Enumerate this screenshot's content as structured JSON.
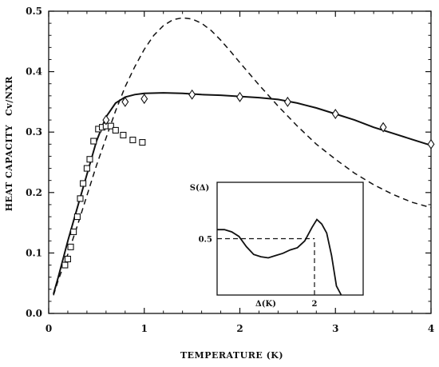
{
  "chart_data": [
    {
      "type": "line",
      "title": "",
      "xlabel": "TEMPERATURE (K)",
      "ylabel": "HEAT CAPACITY",
      "ylabel2": "Cv/NXR",
      "xlim": [
        0,
        4
      ],
      "ylim": [
        0.0,
        0.5
      ],
      "xticks": [
        "0",
        "1",
        "2",
        "3",
        "4"
      ],
      "yticks": [
        "0.0",
        "0.1",
        "0.2",
        "0.3",
        "0.4",
        "0.5"
      ],
      "grid": false,
      "colors": {
        "ink": "#111111"
      },
      "series": [
        {
          "style": "solid",
          "x": [
            0.05,
            0.1,
            0.2,
            0.3,
            0.4,
            0.5,
            0.6,
            0.7,
            0.8,
            0.9,
            1.0,
            1.2,
            1.4,
            1.6,
            1.8,
            2.0,
            2.2,
            2.4,
            2.6,
            2.8,
            3.0,
            3.2,
            3.4,
            3.6,
            3.8,
            4.0
          ],
          "y": [
            0.032,
            0.06,
            0.12,
            0.175,
            0.23,
            0.285,
            0.325,
            0.348,
            0.358,
            0.362,
            0.364,
            0.365,
            0.364,
            0.362,
            0.361,
            0.359,
            0.357,
            0.354,
            0.348,
            0.34,
            0.33,
            0.32,
            0.308,
            0.298,
            0.288,
            0.278
          ]
        },
        {
          "style": "dashed",
          "x": [
            0.05,
            0.1,
            0.2,
            0.3,
            0.4,
            0.5,
            0.6,
            0.7,
            0.8,
            0.9,
            1.0,
            1.1,
            1.2,
            1.3,
            1.4,
            1.5,
            1.6,
            1.7,
            1.8,
            1.9,
            2.0,
            2.2,
            2.4,
            2.6,
            2.8,
            3.0,
            3.2,
            3.4,
            3.6,
            3.8,
            4.0
          ],
          "y": [
            0.03,
            0.055,
            0.098,
            0.145,
            0.195,
            0.245,
            0.29,
            0.335,
            0.375,
            0.408,
            0.437,
            0.46,
            0.476,
            0.486,
            0.489,
            0.487,
            0.48,
            0.468,
            0.452,
            0.434,
            0.415,
            0.378,
            0.343,
            0.31,
            0.28,
            0.255,
            0.232,
            0.213,
            0.197,
            0.184,
            0.175
          ]
        },
        {
          "style": "markers",
          "marker": "square",
          "x": [
            0.17,
            0.2,
            0.23,
            0.26,
            0.3,
            0.33,
            0.36,
            0.4,
            0.43,
            0.47,
            0.52,
            0.56,
            0.6,
            0.65,
            0.7,
            0.78,
            0.88,
            0.98
          ],
          "y": [
            0.08,
            0.09,
            0.11,
            0.135,
            0.16,
            0.19,
            0.215,
            0.24,
            0.255,
            0.285,
            0.305,
            0.308,
            0.31,
            0.31,
            0.303,
            0.295,
            0.287,
            0.283
          ]
        },
        {
          "style": "markers",
          "marker": "diamond",
          "x": [
            0.6,
            0.8,
            1.0,
            1.5,
            2.0,
            2.5,
            3.0,
            3.5,
            4.0
          ],
          "y": [
            0.32,
            0.35,
            0.355,
            0.362,
            0.358,
            0.35,
            0.33,
            0.308,
            0.28
          ]
        }
      ]
    },
    {
      "type": "line",
      "title": "",
      "ylabel": "S(Δ)",
      "xlabel": "Δ(K)",
      "xlim": [
        0,
        3
      ],
      "ylim": [
        0,
        1
      ],
      "xticks": [
        "2"
      ],
      "yticks": [
        "0.5"
      ],
      "series": [
        {
          "style": "solid",
          "x": [
            0.0,
            0.15,
            0.3,
            0.45,
            0.6,
            0.75,
            0.9,
            1.05,
            1.2,
            1.35,
            1.5,
            1.65,
            1.8,
            1.95,
            2.05,
            2.15,
            2.25,
            2.35,
            2.45,
            2.55
          ],
          "y": [
            0.58,
            0.58,
            0.56,
            0.52,
            0.43,
            0.36,
            0.34,
            0.33,
            0.35,
            0.37,
            0.4,
            0.42,
            0.48,
            0.6,
            0.67,
            0.63,
            0.55,
            0.35,
            0.08,
            0.0
          ]
        },
        {
          "style": "dashed",
          "x": [
            0.0,
            2.0
          ],
          "y": [
            0.5,
            0.5
          ]
        },
        {
          "style": "dashed",
          "x": [
            2.0,
            2.0
          ],
          "y": [
            0.0,
            0.5
          ]
        }
      ]
    }
  ]
}
